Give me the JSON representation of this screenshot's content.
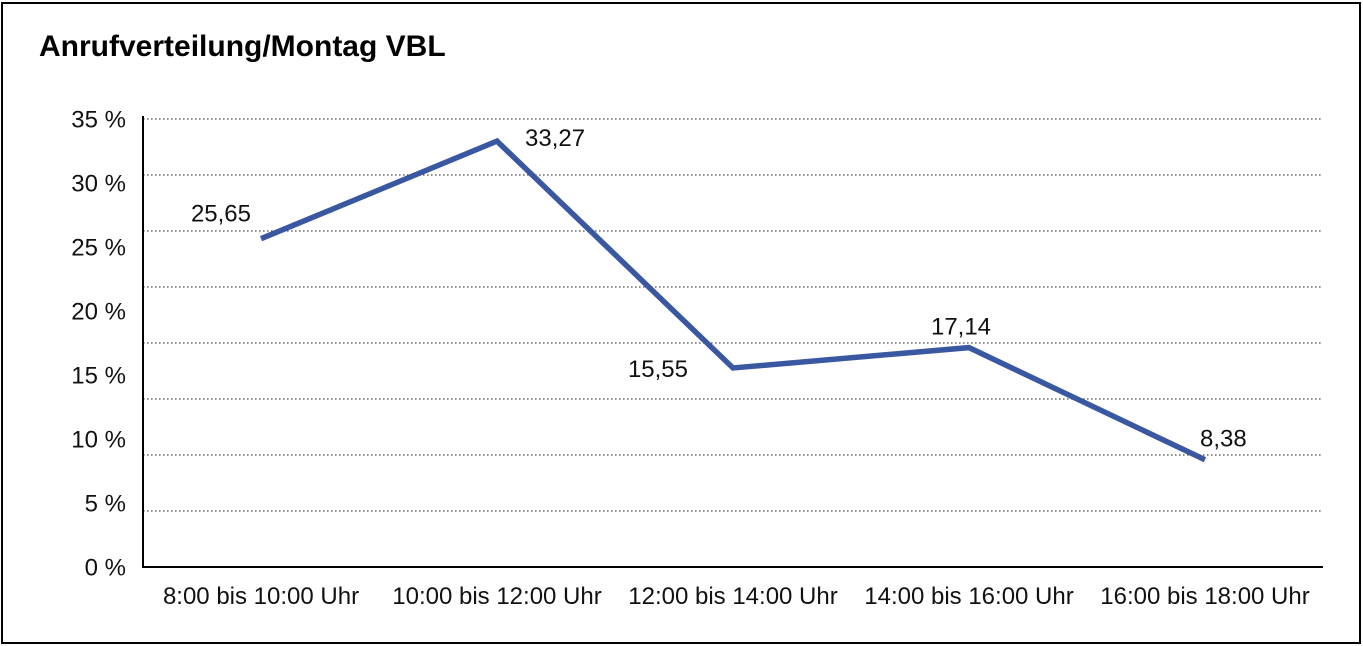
{
  "page": {
    "background_color": "#ffffff",
    "frame_color": "#000000"
  },
  "chart_data": {
    "type": "line",
    "title": "Anrufverteilung/Montag VBL",
    "categories": [
      "8:00 bis 10:00 Uhr",
      "10:00 bis 12:00 Uhr",
      "12:00 bis 14:00 Uhr",
      "14:00 bis 16:00 Uhr",
      "16:00 bis 18:00 Uhr"
    ],
    "values": [
      25.65,
      33.27,
      15.55,
      17.14,
      8.38
    ],
    "point_labels": [
      "25,65",
      "33,27",
      "15,55",
      "17,14",
      "8,38"
    ],
    "y_ticks": [
      "35 %",
      "30 %",
      "25 %",
      "20 %",
      "15 %",
      "10 %",
      "5 %",
      "0 %"
    ],
    "ylim": [
      0,
      35
    ],
    "xlabel": "",
    "ylabel": "",
    "legend": "none",
    "grid": "horizontal-dotted",
    "gridline_divisions": 8,
    "line_color": "#3A57A2",
    "axis_color": "#000000",
    "gridline_color": "#4d4d4d",
    "text_color": "#111111"
  }
}
